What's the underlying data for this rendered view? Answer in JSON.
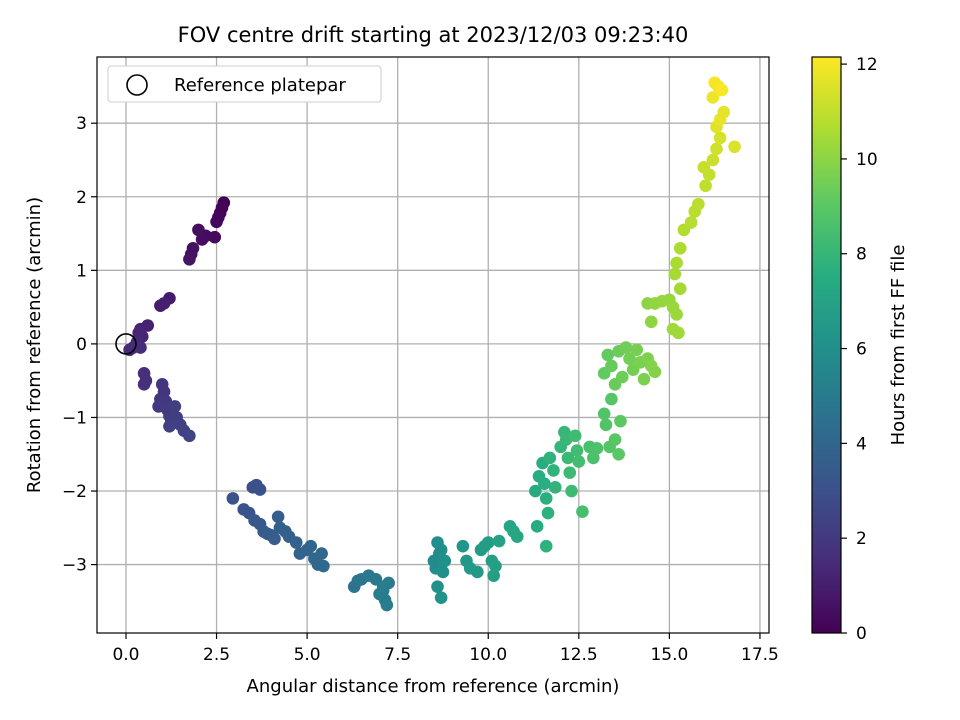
{
  "chart_data": {
    "type": "scatter",
    "title": "FOV centre drift starting at 2023/12/03 09:23:40",
    "xlabel": "Angular distance from reference (arcmin)",
    "ylabel": "Rotation from reference (arcmin)",
    "colorbar_label": "Hours from first FF file",
    "colormap": "viridis",
    "xlim": [
      -0.8,
      17.75
    ],
    "ylim": [
      -3.93,
      3.9
    ],
    "clim": [
      0,
      12.15
    ],
    "x_ticks": [
      0.0,
      2.5,
      5.0,
      7.5,
      10.0,
      12.5,
      15.0,
      17.5
    ],
    "x_tick_labels": [
      "0.0",
      "2.5",
      "5.0",
      "7.5",
      "10.0",
      "12.5",
      "15.0",
      "17.5"
    ],
    "y_ticks": [
      -3,
      -2,
      -1,
      0,
      1,
      2,
      3
    ],
    "y_tick_labels": [
      "−3",
      "−2",
      "−1",
      "0",
      "1",
      "2",
      "3"
    ],
    "colorbar_ticks": [
      0,
      2,
      4,
      6,
      8,
      10,
      12
    ],
    "colorbar_tick_labels": [
      "0",
      "2",
      "4",
      "6",
      "8",
      "10",
      "12"
    ],
    "grid": true,
    "legend": {
      "position": "upper-left",
      "label": "Reference platepar"
    },
    "reference_point": {
      "x": 0.0,
      "y": 0.0
    },
    "series": [
      {
        "points": [
          [
            2.7,
            1.92,
            0.0
          ],
          [
            2.65,
            1.85,
            0.06
          ],
          [
            2.6,
            1.78,
            0.12
          ],
          [
            2.55,
            1.72,
            0.18
          ],
          [
            2.5,
            1.66,
            0.24
          ],
          [
            2.45,
            1.45,
            0.3
          ],
          [
            2.2,
            1.47,
            0.36
          ],
          [
            2.1,
            1.42,
            0.42
          ],
          [
            2.0,
            1.55,
            0.48
          ],
          [
            1.8,
            1.22,
            0.54
          ],
          [
            1.85,
            1.3,
            0.6
          ],
          [
            1.75,
            1.15,
            0.66
          ],
          [
            1.2,
            0.62,
            0.9
          ],
          [
            0.95,
            0.52,
            0.96
          ],
          [
            1.05,
            0.55,
            1.02
          ],
          [
            0.6,
            0.25,
            1.15
          ],
          [
            0.4,
            0.2,
            1.2
          ],
          [
            0.45,
            0.1,
            1.25
          ],
          [
            0.35,
            0.15,
            1.3
          ],
          [
            0.3,
            0.02,
            1.35
          ],
          [
            0.2,
            -0.05,
            1.4
          ],
          [
            0.1,
            -0.08,
            1.45
          ],
          [
            0.4,
            -0.05,
            1.5
          ],
          [
            0.5,
            -0.4,
            1.6
          ],
          [
            0.55,
            -0.5,
            1.65
          ],
          [
            0.5,
            -0.55,
            1.7
          ],
          [
            1.0,
            -0.55,
            1.8
          ],
          [
            1.05,
            -0.65,
            1.85
          ],
          [
            0.95,
            -0.75,
            1.9
          ],
          [
            0.9,
            -0.85,
            1.95
          ],
          [
            1.1,
            -0.78,
            2.0
          ],
          [
            1.15,
            -0.9,
            2.05
          ],
          [
            1.2,
            -0.98,
            2.1
          ],
          [
            1.25,
            -1.05,
            2.15
          ],
          [
            1.35,
            -0.85,
            2.2
          ],
          [
            1.4,
            -1.0,
            2.25
          ],
          [
            1.2,
            -1.12,
            2.3
          ],
          [
            1.5,
            -1.1,
            2.35
          ],
          [
            1.6,
            -1.18,
            2.4
          ],
          [
            1.75,
            -1.25,
            2.45
          ],
          [
            3.5,
            -1.95,
            2.9
          ],
          [
            3.6,
            -1.92,
            2.95
          ],
          [
            3.7,
            -1.98,
            3.0
          ],
          [
            2.95,
            -2.1,
            3.05
          ],
          [
            3.25,
            -2.25,
            3.1
          ],
          [
            3.4,
            -2.3,
            3.15
          ],
          [
            3.55,
            -2.4,
            3.3
          ],
          [
            3.7,
            -2.45,
            3.35
          ],
          [
            3.8,
            -2.55,
            3.4
          ],
          [
            3.9,
            -2.58,
            3.45
          ],
          [
            4.0,
            -2.6,
            3.5
          ],
          [
            4.1,
            -2.65,
            3.55
          ],
          [
            4.2,
            -2.35,
            3.6
          ],
          [
            4.25,
            -2.5,
            3.65
          ],
          [
            4.4,
            -2.55,
            3.7
          ],
          [
            4.5,
            -2.62,
            3.75
          ],
          [
            4.7,
            -2.7,
            3.8
          ],
          [
            4.8,
            -2.85,
            3.85
          ],
          [
            5.0,
            -2.8,
            3.9
          ],
          [
            5.1,
            -2.75,
            3.95
          ],
          [
            5.2,
            -2.92,
            4.0
          ],
          [
            5.3,
            -3.0,
            4.05
          ],
          [
            5.4,
            -2.85,
            4.1
          ],
          [
            5.45,
            -3.02,
            4.15
          ],
          [
            6.3,
            -3.3,
            4.6
          ],
          [
            6.4,
            -3.22,
            4.7
          ],
          [
            6.5,
            -3.2,
            4.75
          ],
          [
            6.7,
            -3.15,
            4.8
          ],
          [
            6.9,
            -3.2,
            4.85
          ],
          [
            7.1,
            -3.35,
            4.9
          ],
          [
            7.15,
            -3.48,
            4.95
          ],
          [
            7.25,
            -3.25,
            5.0
          ],
          [
            7.2,
            -3.55,
            5.05
          ],
          [
            7.0,
            -3.4,
            5.1
          ],
          [
            7.1,
            -3.3,
            5.15
          ],
          [
            8.5,
            -2.95,
            5.8
          ],
          [
            8.55,
            -3.05,
            5.85
          ],
          [
            8.65,
            -2.85,
            5.9
          ],
          [
            8.7,
            -2.8,
            5.95
          ],
          [
            8.6,
            -2.7,
            6.0
          ],
          [
            8.75,
            -3.1,
            6.05
          ],
          [
            8.8,
            -2.95,
            6.1
          ],
          [
            8.6,
            -3.3,
            6.15
          ],
          [
            8.7,
            -3.45,
            6.2
          ],
          [
            9.3,
            -2.75,
            6.4
          ],
          [
            9.4,
            -2.95,
            6.45
          ],
          [
            9.5,
            -3.05,
            6.5
          ],
          [
            9.7,
            -3.1,
            6.55
          ],
          [
            9.8,
            -2.8,
            6.6
          ],
          [
            9.9,
            -2.75,
            6.65
          ],
          [
            10.0,
            -2.7,
            6.7
          ],
          [
            10.1,
            -2.95,
            6.75
          ],
          [
            10.15,
            -3.15,
            6.8
          ],
          [
            10.2,
            -3.02,
            6.85
          ],
          [
            10.3,
            -2.68,
            6.9
          ],
          [
            10.6,
            -2.48,
            7.1
          ],
          [
            10.7,
            -2.55,
            7.15
          ],
          [
            10.8,
            -2.62,
            7.2
          ],
          [
            11.3,
            -2.0,
            7.4
          ],
          [
            11.35,
            -2.48,
            7.45
          ],
          [
            11.4,
            -1.8,
            7.5
          ],
          [
            11.5,
            -1.62,
            7.55
          ],
          [
            11.55,
            -1.9,
            7.6
          ],
          [
            11.6,
            -2.1,
            7.65
          ],
          [
            11.65,
            -2.3,
            7.7
          ],
          [
            11.6,
            -2.75,
            7.75
          ],
          [
            11.7,
            -1.55,
            7.8
          ],
          [
            11.8,
            -1.72,
            7.85
          ],
          [
            11.85,
            -1.95,
            7.9
          ],
          [
            12.0,
            -1.4,
            8.0
          ],
          [
            12.1,
            -1.2,
            8.05
          ],
          [
            12.15,
            -1.3,
            8.1
          ],
          [
            12.2,
            -1.55,
            8.15
          ],
          [
            12.25,
            -1.75,
            8.2
          ],
          [
            12.3,
            -2.0,
            8.25
          ],
          [
            12.4,
            -1.25,
            8.3
          ],
          [
            12.45,
            -1.45,
            8.35
          ],
          [
            12.5,
            -1.6,
            8.4
          ],
          [
            12.6,
            -2.28,
            8.45
          ],
          [
            12.8,
            -1.4,
            8.55
          ],
          [
            12.9,
            -1.55,
            8.6
          ],
          [
            13.0,
            -1.42,
            8.65
          ],
          [
            13.2,
            -0.95,
            8.75
          ],
          [
            13.25,
            -1.1,
            8.8
          ],
          [
            13.35,
            -1.4,
            8.85
          ],
          [
            13.4,
            -0.75,
            8.9
          ],
          [
            13.5,
            -1.3,
            8.95
          ],
          [
            13.6,
            -1.5,
            9.0
          ],
          [
            13.65,
            -1.05,
            9.05
          ],
          [
            13.2,
            -0.4,
            9.15
          ],
          [
            13.3,
            -0.15,
            9.2
          ],
          [
            13.4,
            -0.3,
            9.25
          ],
          [
            13.5,
            -0.55,
            9.3
          ],
          [
            13.6,
            -0.1,
            9.35
          ],
          [
            13.7,
            -0.45,
            9.4
          ],
          [
            13.8,
            -0.05,
            9.45
          ],
          [
            13.9,
            -0.2,
            9.5
          ],
          [
            14.0,
            -0.35,
            9.55
          ],
          [
            14.1,
            -0.08,
            9.6
          ],
          [
            14.2,
            -0.25,
            9.65
          ],
          [
            14.3,
            -0.48,
            9.7
          ],
          [
            14.4,
            -0.2,
            9.75
          ],
          [
            14.5,
            -0.3,
            9.8
          ],
          [
            14.6,
            -0.38,
            9.85
          ],
          [
            14.4,
            0.55,
            10.0
          ],
          [
            14.5,
            0.3,
            10.05
          ],
          [
            14.6,
            0.55,
            10.1
          ],
          [
            14.8,
            0.58,
            10.15
          ],
          [
            15.0,
            0.6,
            10.2
          ],
          [
            15.1,
            0.5,
            10.25
          ],
          [
            15.2,
            0.4,
            10.3
          ],
          [
            15.1,
            0.2,
            10.35
          ],
          [
            15.25,
            0.15,
            10.4
          ],
          [
            15.3,
            0.75,
            10.45
          ],
          [
            15.15,
            0.95,
            10.5
          ],
          [
            15.2,
            1.1,
            10.55
          ],
          [
            15.3,
            1.3,
            10.6
          ],
          [
            15.4,
            1.55,
            10.7
          ],
          [
            15.6,
            1.65,
            10.8
          ],
          [
            15.7,
            1.8,
            10.85
          ],
          [
            15.8,
            1.9,
            10.9
          ],
          [
            16.0,
            2.15,
            11.0
          ],
          [
            16.1,
            2.3,
            11.05
          ],
          [
            15.95,
            2.4,
            11.1
          ],
          [
            16.2,
            2.5,
            11.2
          ],
          [
            16.3,
            2.65,
            11.3
          ],
          [
            16.4,
            2.8,
            11.4
          ],
          [
            16.8,
            2.68,
            11.5
          ],
          [
            16.3,
            2.95,
            11.6
          ],
          [
            16.5,
            3.15,
            11.7
          ],
          [
            16.4,
            3.05,
            11.75
          ],
          [
            16.2,
            3.35,
            11.85
          ],
          [
            16.35,
            3.5,
            11.95
          ],
          [
            16.25,
            3.55,
            12.05
          ],
          [
            16.45,
            3.45,
            12.1
          ]
        ]
      }
    ]
  }
}
